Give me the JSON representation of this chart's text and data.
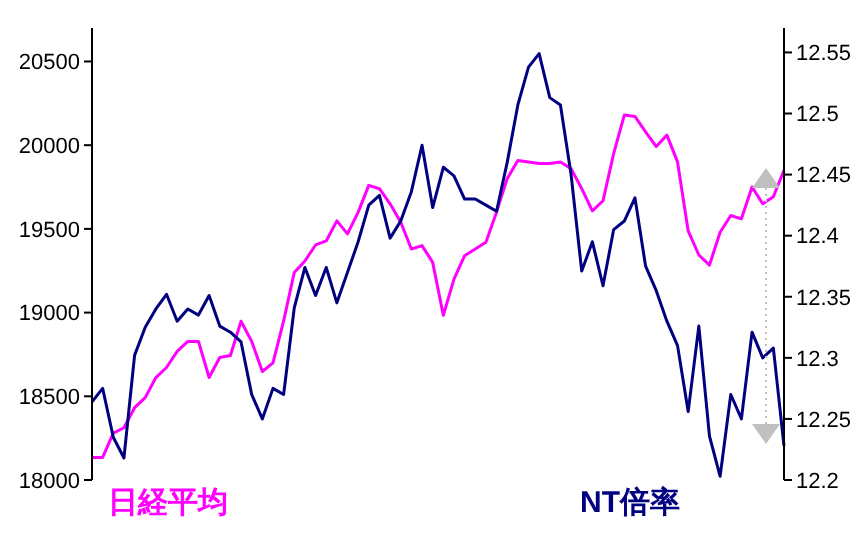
{
  "chart_data": {
    "type": "line",
    "categories": [
      null,
      null,
      null,
      null,
      null,
      null,
      null,
      null,
      null,
      null,
      null,
      null,
      null,
      null,
      null,
      null,
      null,
      null,
      null,
      null,
      null,
      null,
      null,
      null,
      null,
      null,
      null,
      null,
      null,
      null,
      null,
      null,
      null,
      null,
      null,
      null,
      null,
      null,
      null,
      null,
      null,
      null,
      null,
      null,
      null,
      null,
      null,
      null,
      null,
      null,
      null,
      null,
      null,
      null,
      null,
      null,
      null,
      null,
      null,
      null,
      null,
      null,
      null,
      null,
      null,
      null
    ],
    "ylim": [
      18000,
      20700
    ],
    "yticks": [
      18000,
      18500,
      19000,
      19500,
      20000,
      20500
    ],
    "y2lim": [
      12.2,
      12.57
    ],
    "y2ticks": [
      12.2,
      12.25,
      12.3,
      12.35,
      12.4,
      12.45,
      12.5,
      12.55
    ],
    "legend": "bottom",
    "series": [
      {
        "name": "日経平均",
        "color": "#ff00ff",
        "values": [
          18135,
          18135,
          18280,
          18312,
          18432,
          18492,
          18612,
          18672,
          18768,
          18828,
          18828,
          18612,
          18732,
          18744,
          18948,
          18828,
          18648,
          18700,
          18950,
          19240,
          19308,
          19404,
          19428,
          19548,
          19470,
          19600,
          19760,
          19740,
          19650,
          19540,
          19380,
          19400,
          19300,
          18984,
          19200,
          19340,
          19380,
          19420,
          19600,
          19800,
          19908,
          19900,
          19890,
          19890,
          19900,
          19860,
          19740,
          19608,
          19668,
          19950,
          20180,
          20172,
          20080,
          19992,
          20060,
          19900,
          19488,
          19344,
          19284,
          19480,
          19580,
          19560,
          19750,
          19650,
          19692,
          19850
        ]
      },
      {
        "name": "NT倍率",
        "color": "#000080",
        "axis": "y2",
        "values": [
          12.264,
          12.275,
          12.235,
          12.218,
          12.302,
          12.325,
          12.34,
          12.352,
          12.33,
          12.34,
          12.335,
          12.351,
          12.326,
          12.321,
          12.313,
          12.27,
          12.25,
          12.275,
          12.27,
          12.341,
          12.374,
          12.351,
          12.374,
          12.345,
          12.37,
          12.395,
          12.425,
          12.433,
          12.398,
          12.412,
          12.436,
          12.474,
          12.423,
          12.456,
          12.449,
          12.43,
          12.43,
          12.425,
          12.42,
          12.46,
          12.507,
          12.538,
          12.549,
          12.513,
          12.507,
          12.45,
          12.371,
          12.395,
          12.359,
          12.405,
          12.412,
          12.431,
          12.375,
          12.355,
          12.33,
          12.31,
          12.256,
          12.326,
          12.236,
          12.203,
          12.27,
          12.25,
          12.321,
          12.3,
          12.308,
          12.228
        ]
      }
    ]
  }
}
